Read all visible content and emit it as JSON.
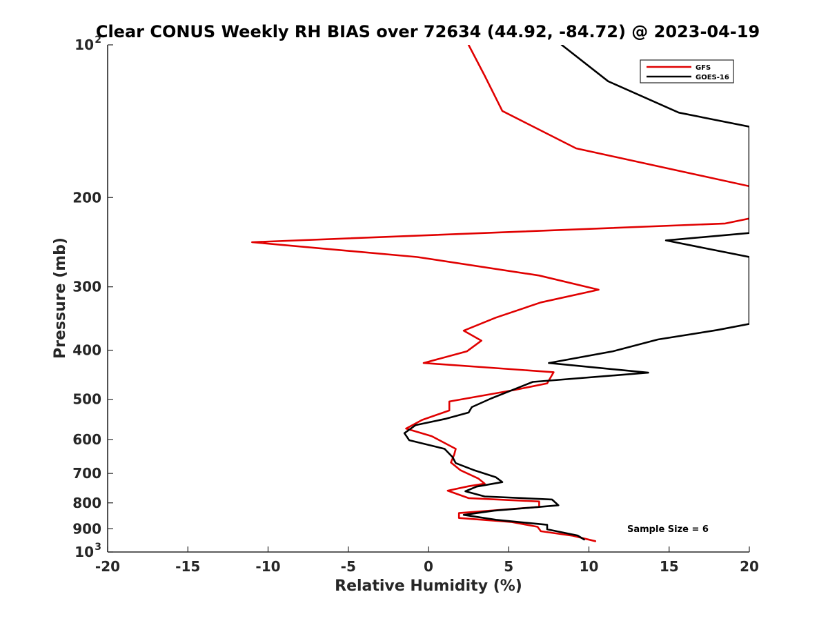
{
  "chart_data": {
    "type": "line",
    "title": "Clear CONUS Weekly RH BIAS over 72634 (44.92, -84.72) @ 2023-04-19",
    "xlabel": "Relative Humidity (%)",
    "ylabel": "Pressure (mb)",
    "xlim": [
      -20,
      20
    ],
    "ylim": [
      100,
      1000
    ],
    "yscale": "log",
    "yreversed": true,
    "grid": false,
    "legend_position": "top-right",
    "x_ticks": [
      {
        "value": -20,
        "label": "-20"
      },
      {
        "value": -15,
        "label": "-15"
      },
      {
        "value": -10,
        "label": "-10"
      },
      {
        "value": -5,
        "label": "-5"
      },
      {
        "value": 0,
        "label": "0"
      },
      {
        "value": 5,
        "label": "5"
      },
      {
        "value": 10,
        "label": "10"
      },
      {
        "value": 15,
        "label": "15"
      },
      {
        "value": 20,
        "label": "20"
      }
    ],
    "y_ticks": [
      {
        "value": 100,
        "base": "10",
        "exp": "2"
      },
      {
        "value": 200,
        "base": "200",
        "exp": ""
      },
      {
        "value": 300,
        "base": "300",
        "exp": ""
      },
      {
        "value": 400,
        "base": "400",
        "exp": ""
      },
      {
        "value": 500,
        "base": "500",
        "exp": ""
      },
      {
        "value": 600,
        "base": "600",
        "exp": ""
      },
      {
        "value": 700,
        "base": "700",
        "exp": ""
      },
      {
        "value": 800,
        "base": "800",
        "exp": ""
      },
      {
        "value": 900,
        "base": "900",
        "exp": ""
      },
      {
        "value": 1000,
        "base": "10",
        "exp": "3"
      }
    ],
    "annotation": "Sample Size = 6",
    "series": [
      {
        "name": "GFS",
        "color": "#e00000",
        "points": [
          [
            2.5,
            100
          ],
          [
            3.5,
            115
          ],
          [
            4.6,
            135
          ],
          [
            9.2,
            160
          ],
          [
            20,
            190
          ],
          [
            20.5,
            200
          ],
          [
            20,
            220
          ],
          [
            18.5,
            225
          ],
          [
            -11,
            245
          ],
          [
            -0.7,
            262
          ],
          [
            6.9,
            285
          ],
          [
            10.6,
            304
          ],
          [
            7.0,
            322
          ],
          [
            4.2,
            345
          ],
          [
            2.2,
            366
          ],
          [
            3.3,
            383
          ],
          [
            2.4,
            402
          ],
          [
            -0.3,
            424
          ],
          [
            7.8,
            442
          ],
          [
            7.4,
            465
          ],
          [
            5.4,
            479
          ],
          [
            1.3,
            505
          ],
          [
            1.3,
            526
          ],
          [
            -0.4,
            549
          ],
          [
            -1.4,
            571
          ],
          [
            0.2,
            591
          ],
          [
            1.7,
            626
          ],
          [
            1.6,
            643
          ],
          [
            1.4,
            666
          ],
          [
            2.0,
            690
          ],
          [
            3.1,
            716
          ],
          [
            3.5,
            733
          ],
          [
            2.5,
            742
          ],
          [
            1.2,
            757
          ],
          [
            2.5,
            783
          ],
          [
            6.9,
            795
          ],
          [
            6.9,
            815
          ],
          [
            1.9,
            838
          ],
          [
            1.9,
            857
          ],
          [
            5.2,
            873
          ],
          [
            6.8,
            892
          ],
          [
            7.0,
            910
          ],
          [
            9.0,
            929
          ],
          [
            10.4,
            952
          ]
        ]
      },
      {
        "name": "GOES-16",
        "color": "#000000",
        "points": [
          [
            8.3,
            100
          ],
          [
            11.2,
            118
          ],
          [
            15.6,
            136
          ],
          [
            20,
            145
          ],
          [
            20,
            235
          ],
          [
            14.8,
            243
          ],
          [
            20,
            262
          ],
          [
            20,
            355
          ],
          [
            18.0,
            365
          ],
          [
            14.3,
            381
          ],
          [
            11.5,
            402
          ],
          [
            7.5,
            424
          ],
          [
            13.7,
            443
          ],
          [
            6.5,
            462
          ],
          [
            5.1,
            481
          ],
          [
            3.9,
            498
          ],
          [
            2.7,
            518
          ],
          [
            2.5,
            531
          ],
          [
            1.1,
            546
          ],
          [
            -0.8,
            562
          ],
          [
            -1.5,
            583
          ],
          [
            -1.2,
            602
          ],
          [
            1.0,
            626
          ],
          [
            1.5,
            650
          ],
          [
            1.7,
            668
          ],
          [
            2.8,
            689
          ],
          [
            4.2,
            712
          ],
          [
            4.6,
            728
          ],
          [
            3.0,
            743
          ],
          [
            2.3,
            759
          ],
          [
            3.5,
            777
          ],
          [
            7.7,
            788
          ],
          [
            8.1,
            809
          ],
          [
            4.1,
            829
          ],
          [
            2.2,
            845
          ],
          [
            4.2,
            864
          ],
          [
            7.4,
            884
          ],
          [
            7.4,
            902
          ],
          [
            9.3,
            928
          ],
          [
            9.7,
            945
          ]
        ]
      }
    ]
  }
}
